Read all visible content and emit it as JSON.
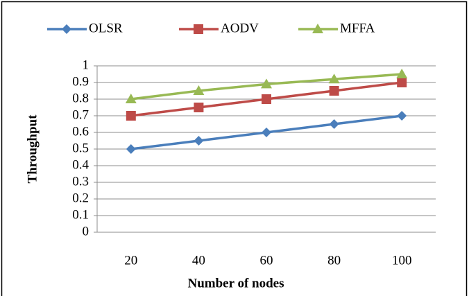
{
  "chart_data": {
    "type": "line",
    "x_label": "Number of nodes",
    "y_label": "Throughput",
    "categories": [
      "20",
      "40",
      "60",
      "80",
      "100"
    ],
    "series": [
      {
        "name": "OLSR",
        "color": "#4a7ebb",
        "marker": "diamond",
        "values": [
          0.5,
          0.55,
          0.6,
          0.65,
          0.7
        ]
      },
      {
        "name": "AODV",
        "color": "#be4b48",
        "marker": "square",
        "values": [
          0.7,
          0.75,
          0.8,
          0.85,
          0.9
        ]
      },
      {
        "name": "MFFA",
        "color": "#98b954",
        "marker": "triangle",
        "values": [
          0.8,
          0.85,
          0.89,
          0.92,
          0.95
        ]
      }
    ],
    "ylim": [
      0,
      1
    ],
    "yticks": [
      0,
      0.1,
      0.2,
      0.3,
      0.4,
      0.5,
      0.6,
      0.7,
      0.8,
      0.9,
      1
    ],
    "grid": true,
    "legend": "top"
  }
}
